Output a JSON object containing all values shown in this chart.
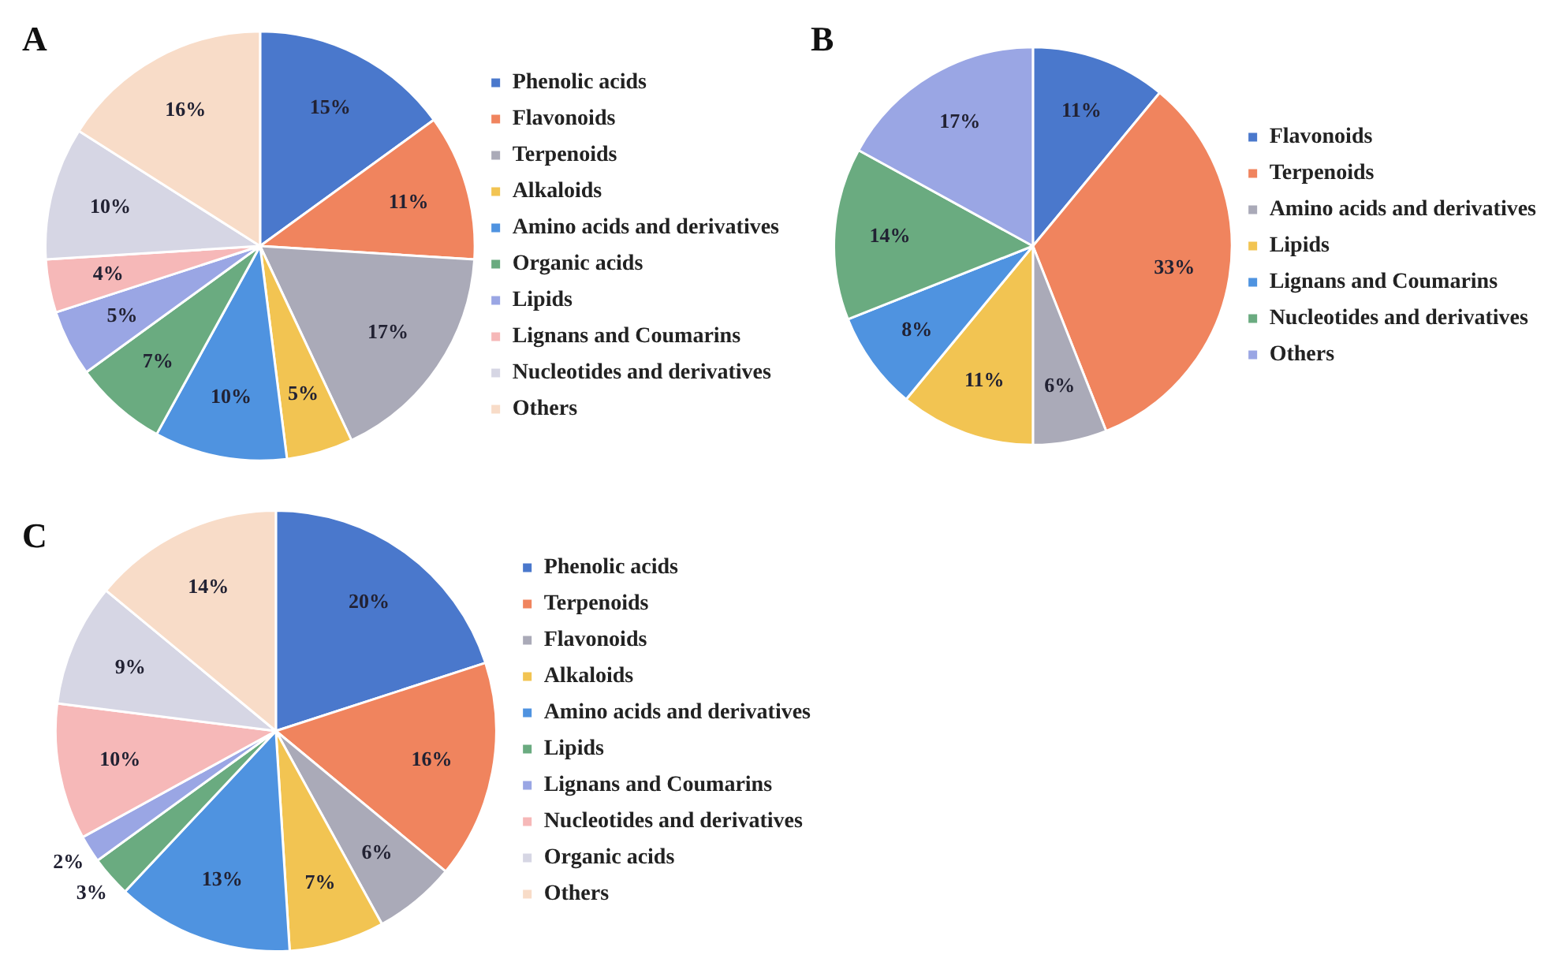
{
  "chart_data": [
    {
      "type": "pie",
      "title": "A",
      "legend": "right",
      "categories": [
        "Phenolic acids",
        "Flavonoids",
        "Terpenoids",
        "Alkaloids",
        "Amino acids and derivatives",
        "Organic acids",
        "Lipids",
        "Lignans and Coumarins",
        "Nucleotides and derivatives",
        "Others"
      ],
      "values": [
        15,
        11,
        17,
        5,
        10,
        7,
        5,
        4,
        10,
        16
      ],
      "value_labels": [
        "15%",
        "11%",
        "17%",
        "5%",
        "10%",
        "7%",
        "5%",
        "4%",
        "10%",
        "16%"
      ],
      "colors": [
        "#4a78cc",
        "#f0845e",
        "#aaaab8",
        "#f2c452",
        "#4f93e0",
        "#6aab80",
        "#9aa6e4",
        "#f6b8b8",
        "#d6d6e4",
        "#f8dcc8"
      ]
    },
    {
      "type": "pie",
      "title": "B",
      "legend": "right",
      "categories": [
        "Flavonoids",
        "Terpenoids",
        "Amino acids and derivatives",
        "Lipids",
        "Lignans and Coumarins",
        "Nucleotides and derivatives",
        "Others"
      ],
      "values": [
        11,
        33,
        6,
        11,
        8,
        14,
        17
      ],
      "value_labels": [
        "11%",
        "33%",
        "6%",
        "11%",
        "8%",
        "14%",
        "17%"
      ],
      "colors": [
        "#4a78cc",
        "#f0845e",
        "#aaaab8",
        "#f2c452",
        "#4f93e0",
        "#6aab80",
        "#9aa6e4"
      ]
    },
    {
      "type": "pie",
      "title": "C",
      "legend": "right",
      "categories": [
        "Phenolic acids",
        "Terpenoids",
        "Flavonoids",
        "Alkaloids",
        "Amino acids and derivatives",
        "Lipids",
        "Lignans and Coumarins",
        "Nucleotides and derivatives",
        "Organic acids",
        "Others"
      ],
      "values": [
        20,
        16,
        6,
        7,
        13,
        3,
        2,
        10,
        9,
        14
      ],
      "value_labels": [
        "20%",
        "16%",
        "6%",
        "7%",
        "13%",
        "3%",
        "2%",
        "10%",
        "9%",
        "14%"
      ],
      "colors": [
        "#4a78cc",
        "#f0845e",
        "#aaaab8",
        "#f2c452",
        "#4f93e0",
        "#6aab80",
        "#9aa6e4",
        "#f6b8b8",
        "#d6d6e4",
        "#f8dcc8"
      ]
    }
  ]
}
